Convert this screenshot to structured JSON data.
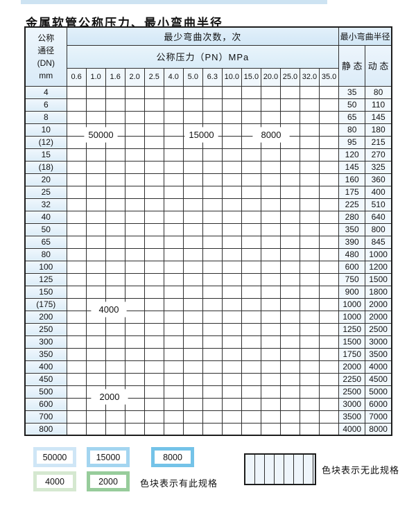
{
  "title": "金属软管公称压力、最小弯曲半径",
  "colors": {
    "c50000": "#d9ecf9",
    "c15000": "#a5d6f1",
    "c8000": "#6fc0e7",
    "c4000": "#d3e6cd",
    "c2000": "#9bcd9e"
  },
  "table": {
    "corner_header": "公称\n通径\n(DN)\nmm",
    "bend_cycles_header": "最少弯曲次数，次",
    "pressure_header": "公称压力（PN）MPa",
    "radius_header": "最小弯曲半径",
    "static_header": "静 态",
    "dynamic_header": "动 态",
    "pressure_columns": [
      "0.6",
      "1.0",
      "1.6",
      "2.0",
      "2.5",
      "4.0",
      "5.0",
      "6.3",
      "10.0",
      "15.0",
      "20.0",
      "25.0",
      "32.0",
      "35.0"
    ],
    "pattern_codes": {
      "L": "50000",
      "M": "15000",
      "D": "8000",
      "F": "4000",
      "T": "2000",
      "N": "no-spec"
    },
    "rows": [
      {
        "dn": "4",
        "pattern": "LLLLLMMMMDDDDD",
        "static": "35",
        "dynamic": "80"
      },
      {
        "dn": "6",
        "pattern": "LLLLLMMMMDDDNN",
        "static": "50",
        "dynamic": "110"
      },
      {
        "dn": "8",
        "pattern": "LLLLLMMMMDDDNN",
        "static": "65",
        "dynamic": "145"
      },
      {
        "dn": "10",
        "pattern": "LLLLLMMMMDDDNN",
        "static": "80",
        "dynamic": "180"
      },
      {
        "dn": "(12)",
        "pattern": "LLLLLMMMMDDDNN",
        "static": "95",
        "dynamic": "215"
      },
      {
        "dn": "15",
        "pattern": "LLLLLMMMDDDDNN",
        "static": "120",
        "dynamic": "270"
      },
      {
        "dn": "(18)",
        "pattern": "LLLLLMMMDDDNNN",
        "static": "145",
        "dynamic": "325"
      },
      {
        "dn": "20",
        "pattern": "LLLLLMMMDDDNNN",
        "static": "160",
        "dynamic": "360"
      },
      {
        "dn": "25",
        "pattern": "LLLLLMMMDDNNNN",
        "static": "175",
        "dynamic": "400"
      },
      {
        "dn": "32",
        "pattern": "LLLLLMMDDNNNNN",
        "static": "225",
        "dynamic": "510"
      },
      {
        "dn": "40",
        "pattern": "LLLLLMMDDNNNNN",
        "static": "280",
        "dynamic": "640"
      },
      {
        "dn": "50",
        "pattern": "LLLLLMDDNNNNNN",
        "static": "350",
        "dynamic": "800"
      },
      {
        "dn": "65",
        "pattern": "LLLLLMDDNNNNNN",
        "static": "390",
        "dynamic": "845"
      },
      {
        "dn": "80",
        "pattern": "LLLLLMDNNNNNNN",
        "static": "480",
        "dynamic": "1000"
      },
      {
        "dn": "100",
        "pattern": "FFFFFFNNNNNNNN",
        "static": "600",
        "dynamic": "1200"
      },
      {
        "dn": "125",
        "pattern": "FFFFFFNNNNNNNN",
        "static": "750",
        "dynamic": "1500"
      },
      {
        "dn": "150",
        "pattern": "FFFFFFNNNNNNNN",
        "static": "900",
        "dynamic": "1800"
      },
      {
        "dn": "(175)",
        "pattern": "FFFFFFNNNNNNNN",
        "static": "1000",
        "dynamic": "2000"
      },
      {
        "dn": "200",
        "pattern": "FFFFFFNNNNNNNN",
        "static": "1000",
        "dynamic": "2000"
      },
      {
        "dn": "250",
        "pattern": "FFFFFFNNNNNNNN",
        "static": "1250",
        "dynamic": "2500"
      },
      {
        "dn": "300",
        "pattern": "FFFFFFNNNNNNNN",
        "static": "1500",
        "dynamic": "3000"
      },
      {
        "dn": "350",
        "pattern": "TTTTTNNNNNNNNN",
        "static": "1750",
        "dynamic": "3500"
      },
      {
        "dn": "400",
        "pattern": "TTTTTNNNNNNNNN",
        "static": "2000",
        "dynamic": "4000"
      },
      {
        "dn": "450",
        "pattern": "TTTTTNNNNNNNNN",
        "static": "2250",
        "dynamic": "4500"
      },
      {
        "dn": "500",
        "pattern": "TTTTTNNNNNNNNN",
        "static": "2500",
        "dynamic": "5000"
      },
      {
        "dn": "600",
        "pattern": "TTTTNNNNNNNNNN",
        "static": "3000",
        "dynamic": "6000"
      },
      {
        "dn": "700",
        "pattern": "TTTNNNNNNNNNNN",
        "static": "3500",
        "dynamic": "7000"
      },
      {
        "dn": "800",
        "pattern": "TTTNNNNNNNNNNN",
        "static": "4000",
        "dynamic": "8000"
      }
    ]
  },
  "overlay_labels": [
    {
      "key": "b50000",
      "text": "50000"
    },
    {
      "key": "b15000",
      "text": "15000"
    },
    {
      "key": "b8000",
      "text": "8000"
    },
    {
      "key": "b4000",
      "text": "4000"
    },
    {
      "key": "b2000",
      "text": "2000"
    }
  ],
  "legend": {
    "blocks": [
      {
        "key": "b50000",
        "label": "50000",
        "color": "#cfe6f6"
      },
      {
        "key": "b15000",
        "label": "15000",
        "color": "#a3d5f0"
      },
      {
        "key": "b8000",
        "label": "8000",
        "color": "#74c3e8"
      },
      {
        "key": "b4000",
        "label": "4000",
        "color": "#d5e8d0"
      },
      {
        "key": "b2000",
        "label": "2000",
        "color": "#97cc9b"
      }
    ],
    "has_spec_text": "色块表示有此规格",
    "no_spec_text": "色块表示无此规格"
  }
}
